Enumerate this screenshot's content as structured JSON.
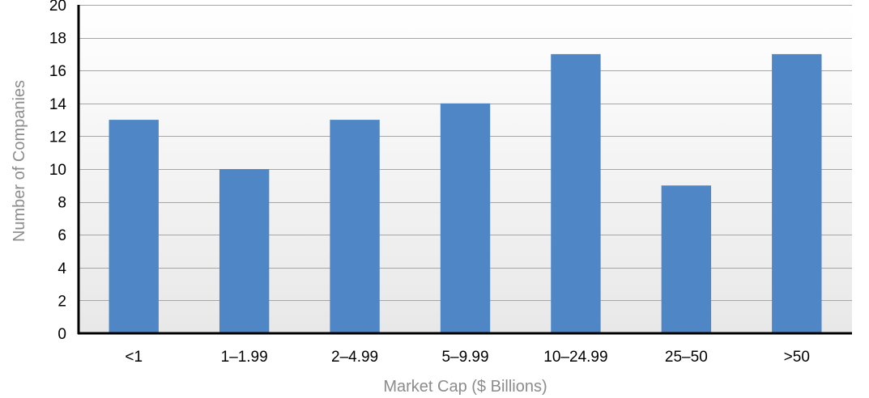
{
  "chart_data": {
    "type": "bar",
    "title": "",
    "categories": [
      "<1",
      "1–1.99",
      "2–4.99",
      "5–9.99",
      "10–24.99",
      "25–50",
      ">50"
    ],
    "values": [
      13,
      10,
      13,
      14,
      17,
      9,
      17
    ],
    "xlabel": "Market Cap ($ Billions)",
    "ylabel": "Number of Companies",
    "ylim": [
      0,
      20
    ],
    "yticks": [
      0,
      2,
      4,
      6,
      8,
      10,
      12,
      14,
      16,
      18,
      20
    ],
    "grid": true,
    "legend": "none",
    "colors": {
      "bar": "#4f87c6",
      "plot_bg_top": "#ffffff",
      "plot_bg_bottom": "#e8e8e8",
      "grid": "#a6a6a6",
      "axis": "#000000",
      "axis_title": "#8c8c8c"
    }
  }
}
